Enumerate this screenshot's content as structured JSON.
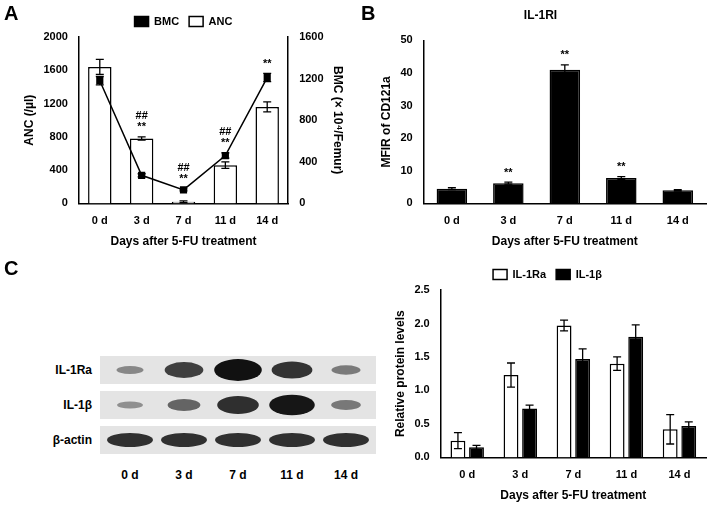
{
  "chart_data": [
    {
      "panel": "A",
      "type": "bar",
      "categories": [
        "0 d",
        "3 d",
        "7 d",
        "11 d",
        "14 d"
      ],
      "x_label": "Days after 5-FU treatment",
      "y_label": "ANC (/µl)",
      "y2_label": "BMC (× 10⁴/Femur)",
      "ylim": [
        0,
        2000
      ],
      "yticks": [
        0,
        400,
        800,
        1200,
        1600,
        2000
      ],
      "y2lim": [
        0,
        1600
      ],
      "y2ticks": [
        0,
        400,
        800,
        1200,
        1600
      ],
      "grid": false,
      "legend": "top",
      "series": [
        {
          "name": "ANC",
          "type": "bar",
          "color": "#ffffff",
          "values": [
            1640,
            780,
            20,
            460,
            1160
          ],
          "errors": [
            90,
            20,
            10,
            40,
            60
          ]
        },
        {
          "name": "BMC",
          "type": "line",
          "color": "#000000",
          "marker": "square",
          "axis": "y2",
          "values": [
            1180,
            270,
            130,
            460,
            1210
          ],
          "errors": [
            40,
            15,
            10,
            25,
            40
          ]
        }
      ],
      "annotations": [
        null,
        [
          "##",
          "**"
        ],
        [
          "##",
          "**"
        ],
        [
          "##",
          "**"
        ],
        [
          "**"
        ]
      ]
    },
    {
      "panel": "B",
      "type": "bar",
      "title": "IL-1RI",
      "categories": [
        "0 d",
        "3 d",
        "7 d",
        "11 d",
        "14 d"
      ],
      "x_label": "Days after 5-FU treatment",
      "y_label": "MFIR of CD121a",
      "ylim": [
        0,
        50
      ],
      "yticks": [
        0,
        10,
        20,
        30,
        40,
        50
      ],
      "grid": false,
      "series": [
        {
          "name": "IL-1RI",
          "type": "bar",
          "color": "#000000",
          "values": [
            4.5,
            6.2,
            41,
            7.8,
            4.0
          ],
          "errors": [
            0.3,
            0.3,
            1.5,
            0.4,
            0.2
          ]
        }
      ],
      "annotations": [
        null,
        [
          "**"
        ],
        [
          "**"
        ],
        [
          "**"
        ],
        null
      ]
    },
    {
      "type": "bar",
      "categories": [
        "0 d",
        "3 d",
        "7 d",
        "11 d",
        "14 d"
      ],
      "x_label": "Days after 5-FU treatment",
      "y_label": "Relative protein levels",
      "ylim": [
        0,
        2.5
      ],
      "yticks": [
        {
          "value": 0,
          "label": "0.0"
        },
        0.5,
        {
          "value": 1,
          "label": "1.0"
        },
        1.5,
        {
          "value": 2,
          "label": "2.0"
        },
        2.5
      ],
      "grid": false,
      "legend": "top",
      "series": [
        {
          "name": "IL-1Ra",
          "type": "bar",
          "color": "#ffffff",
          "values": [
            0.25,
            1.23,
            1.97,
            1.4,
            0.42
          ],
          "errors": [
            0.12,
            0.18,
            0.08,
            0.1,
            0.22
          ]
        },
        {
          "name": "IL-1β",
          "type": "bar",
          "color": "#000000",
          "values": [
            0.15,
            0.73,
            1.47,
            1.8,
            0.47
          ],
          "errors": [
            0.03,
            0.05,
            0.15,
            0.18,
            0.06
          ]
        }
      ]
    }
  ],
  "blot": {
    "panel": "C",
    "rows": [
      "IL-1Ra",
      "IL-1β",
      "β-actin"
    ],
    "lanes": [
      "0 d",
      "3 d",
      "7 d",
      "11 d",
      "14 d"
    ]
  }
}
